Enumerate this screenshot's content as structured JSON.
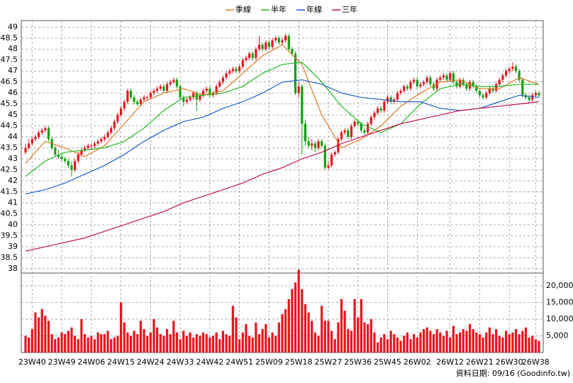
{
  "chart_data": {
    "type": "candlestick",
    "ohlc": [
      [
        43.3,
        43.7,
        43.2,
        43.5
      ],
      [
        43.5,
        43.9,
        43.4,
        43.7
      ],
      [
        43.7,
        44.0,
        43.6,
        43.9
      ],
      [
        43.9,
        44.1,
        43.8,
        44.0
      ],
      [
        44.0,
        44.3,
        43.9,
        44.2
      ],
      [
        44.2,
        44.4,
        44.1,
        44.3
      ],
      [
        44.3,
        44.5,
        44.2,
        44.4
      ],
      [
        44.4,
        44.5,
        43.8,
        43.9
      ],
      [
        43.9,
        44.0,
        43.4,
        43.5
      ],
      [
        43.5,
        43.6,
        43.1,
        43.2
      ],
      [
        43.2,
        43.4,
        43.0,
        43.1
      ],
      [
        43.1,
        43.3,
        42.9,
        43.0
      ],
      [
        43.0,
        43.1,
        42.8,
        42.9
      ],
      [
        42.9,
        43.0,
        42.6,
        42.7
      ],
      [
        42.7,
        42.9,
        42.2,
        42.5
      ],
      [
        42.5,
        43.0,
        42.4,
        42.9
      ],
      [
        42.9,
        43.3,
        42.8,
        43.2
      ],
      [
        43.2,
        43.5,
        43.1,
        43.4
      ],
      [
        43.4,
        43.6,
        43.3,
        43.5
      ],
      [
        43.5,
        43.7,
        43.4,
        43.6
      ],
      [
        43.6,
        43.7,
        43.4,
        43.6
      ],
      [
        43.6,
        43.8,
        43.5,
        43.7
      ],
      [
        43.7,
        43.9,
        43.6,
        43.8
      ],
      [
        43.8,
        44.0,
        43.7,
        43.9
      ],
      [
        43.9,
        44.1,
        43.8,
        44.0
      ],
      [
        44.0,
        44.3,
        43.9,
        44.2
      ],
      [
        44.2,
        44.5,
        44.1,
        44.4
      ],
      [
        44.4,
        44.8,
        44.3,
        44.7
      ],
      [
        44.7,
        45.1,
        44.6,
        45.0
      ],
      [
        45.0,
        45.4,
        44.9,
        45.3
      ],
      [
        45.3,
        45.7,
        45.2,
        45.6
      ],
      [
        45.6,
        46.2,
        45.5,
        46.1
      ],
      [
        46.1,
        46.2,
        45.7,
        45.8
      ],
      [
        45.8,
        45.9,
        45.5,
        45.6
      ],
      [
        45.6,
        45.7,
        45.4,
        45.5
      ],
      [
        45.5,
        45.8,
        45.4,
        45.7
      ],
      [
        45.7,
        45.9,
        45.6,
        45.8
      ],
      [
        45.8,
        45.9,
        45.7,
        45.8
      ],
      [
        45.8,
        46.1,
        45.7,
        46.0
      ],
      [
        46.0,
        46.2,
        45.9,
        46.1
      ],
      [
        46.1,
        46.3,
        46.0,
        46.2
      ],
      [
        46.2,
        46.4,
        46.1,
        46.3
      ],
      [
        46.3,
        46.4,
        46.0,
        46.1
      ],
      [
        46.1,
        46.5,
        46.0,
        46.4
      ],
      [
        46.4,
        46.6,
        46.3,
        46.5
      ],
      [
        46.5,
        46.7,
        46.4,
        46.6
      ],
      [
        46.6,
        46.7,
        46.2,
        46.3
      ],
      [
        46.3,
        46.4,
        45.7,
        45.8
      ],
      [
        45.8,
        45.9,
        45.4,
        45.6
      ],
      [
        45.6,
        45.8,
        45.5,
        45.7
      ],
      [
        45.7,
        45.9,
        45.6,
        45.8
      ],
      [
        45.8,
        46.1,
        45.7,
        46.0
      ],
      [
        46.0,
        46.1,
        45.2,
        45.7
      ],
      [
        45.7,
        46.0,
        45.6,
        45.9
      ],
      [
        45.9,
        46.2,
        45.8,
        46.1
      ],
      [
        46.1,
        46.3,
        46.0,
        46.2
      ],
      [
        46.2,
        46.3,
        45.8,
        45.9
      ],
      [
        45.9,
        46.1,
        45.8,
        46.0
      ],
      [
        46.0,
        46.4,
        45.9,
        46.3
      ],
      [
        46.3,
        46.6,
        46.2,
        46.5
      ],
      [
        46.5,
        46.8,
        46.4,
        46.7
      ],
      [
        46.7,
        47.0,
        46.6,
        46.9
      ],
      [
        46.9,
        47.1,
        46.8,
        47.0
      ],
      [
        47.0,
        47.2,
        46.9,
        47.1
      ],
      [
        47.1,
        47.2,
        46.9,
        47.0
      ],
      [
        47.0,
        47.3,
        46.9,
        47.2
      ],
      [
        47.2,
        47.6,
        47.1,
        47.5
      ],
      [
        47.5,
        47.7,
        47.4,
        47.6
      ],
      [
        47.6,
        47.9,
        47.5,
        47.8
      ],
      [
        47.8,
        47.9,
        47.5,
        47.6
      ],
      [
        47.6,
        48.1,
        47.5,
        48.0
      ],
      [
        48.0,
        48.6,
        47.9,
        48.2
      ],
      [
        48.2,
        48.3,
        47.9,
        48.0
      ],
      [
        48.0,
        48.4,
        47.9,
        48.3
      ],
      [
        48.3,
        48.4,
        48.0,
        48.1
      ],
      [
        48.1,
        48.5,
        48.0,
        48.4
      ],
      [
        48.4,
        48.6,
        48.3,
        48.5
      ],
      [
        48.5,
        48.6,
        48.2,
        48.3
      ],
      [
        48.3,
        48.5,
        48.2,
        48.4
      ],
      [
        48.4,
        48.7,
        48.3,
        48.6
      ],
      [
        48.6,
        48.7,
        47.9,
        48.0
      ],
      [
        48.0,
        48.1,
        47.7,
        47.8
      ],
      [
        47.8,
        47.9,
        45.9,
        46.0
      ],
      [
        46.0,
        46.5,
        45.8,
        46.3
      ],
      [
        46.3,
        46.4,
        43.2,
        44.6
      ],
      [
        44.6,
        44.8,
        43.6,
        43.8
      ],
      [
        43.8,
        44.0,
        43.5,
        43.6
      ],
      [
        43.6,
        43.9,
        43.4,
        43.7
      ],
      [
        43.7,
        43.8,
        43.3,
        43.5
      ],
      [
        43.5,
        43.9,
        43.4,
        43.8
      ],
      [
        43.8,
        43.9,
        43.5,
        43.6
      ],
      [
        43.6,
        43.7,
        42.5,
        42.6
      ],
      [
        42.6,
        42.9,
        42.5,
        42.7
      ],
      [
        42.7,
        43.3,
        42.6,
        43.2
      ],
      [
        43.2,
        43.4,
        43.1,
        43.3
      ],
      [
        43.3,
        44.0,
        43.2,
        43.9
      ],
      [
        43.9,
        44.3,
        43.8,
        44.2
      ],
      [
        44.2,
        44.4,
        44.1,
        44.3
      ],
      [
        44.3,
        44.4,
        43.9,
        44.0
      ],
      [
        44.0,
        44.6,
        43.9,
        44.5
      ],
      [
        44.5,
        44.8,
        44.4,
        44.7
      ],
      [
        44.7,
        44.8,
        44.5,
        44.6
      ],
      [
        44.6,
        44.7,
        44.2,
        44.3
      ],
      [
        44.3,
        44.4,
        44.1,
        44.2
      ],
      [
        44.2,
        44.7,
        44.1,
        44.6
      ],
      [
        44.6,
        45.0,
        44.5,
        44.9
      ],
      [
        44.9,
        45.2,
        44.8,
        45.1
      ],
      [
        45.1,
        45.4,
        45.0,
        45.3
      ],
      [
        45.3,
        45.4,
        45.1,
        45.2
      ],
      [
        45.2,
        45.7,
        45.1,
        45.6
      ],
      [
        45.6,
        45.9,
        45.5,
        45.8
      ],
      [
        45.8,
        45.9,
        45.5,
        45.6
      ],
      [
        45.6,
        45.8,
        45.5,
        45.7
      ],
      [
        45.7,
        46.1,
        45.6,
        46.0
      ],
      [
        46.0,
        46.2,
        45.9,
        46.1
      ],
      [
        46.1,
        46.4,
        46.0,
        46.3
      ],
      [
        46.3,
        46.4,
        46.1,
        46.2
      ],
      [
        46.2,
        46.6,
        46.1,
        46.5
      ],
      [
        46.5,
        46.7,
        46.4,
        46.6
      ],
      [
        46.6,
        46.7,
        46.2,
        46.3
      ],
      [
        46.3,
        46.5,
        46.2,
        46.4
      ],
      [
        46.4,
        46.6,
        46.3,
        46.5
      ],
      [
        46.5,
        46.8,
        46.4,
        46.7
      ],
      [
        46.7,
        46.8,
        46.3,
        46.4
      ],
      [
        46.4,
        46.5,
        46.1,
        46.2
      ],
      [
        46.2,
        46.7,
        46.1,
        46.6
      ],
      [
        46.6,
        46.8,
        46.5,
        46.7
      ],
      [
        46.7,
        46.9,
        46.6,
        46.8
      ],
      [
        46.8,
        46.9,
        46.5,
        46.6
      ],
      [
        46.6,
        47.0,
        46.5,
        46.9
      ],
      [
        46.9,
        47.0,
        46.4,
        46.5
      ],
      [
        46.5,
        46.6,
        46.2,
        46.3
      ],
      [
        46.3,
        46.7,
        46.2,
        46.6
      ],
      [
        46.6,
        46.7,
        46.3,
        46.4
      ],
      [
        46.4,
        46.5,
        46.1,
        46.2
      ],
      [
        46.2,
        46.6,
        46.1,
        46.5
      ],
      [
        46.5,
        46.6,
        46.2,
        46.3
      ],
      [
        46.3,
        46.4,
        46.0,
        46.1
      ],
      [
        46.1,
        46.2,
        45.8,
        45.9
      ],
      [
        45.9,
        46.0,
        45.7,
        45.8
      ],
      [
        45.8,
        46.1,
        45.7,
        46.0
      ],
      [
        46.0,
        46.3,
        45.9,
        46.2
      ],
      [
        46.2,
        46.3,
        46.0,
        46.1
      ],
      [
        46.1,
        46.5,
        46.0,
        46.4
      ],
      [
        46.4,
        46.7,
        46.3,
        46.6
      ],
      [
        46.6,
        46.9,
        46.5,
        46.8
      ],
      [
        46.8,
        47.1,
        46.7,
        47.0
      ],
      [
        47.0,
        47.2,
        46.9,
        47.1
      ],
      [
        47.1,
        47.4,
        47.0,
        47.2
      ],
      [
        47.2,
        47.3,
        46.9,
        47.0
      ],
      [
        47.0,
        47.1,
        46.5,
        46.6
      ],
      [
        46.6,
        46.7,
        45.8,
        45.9
      ],
      [
        45.9,
        46.0,
        45.7,
        45.8
      ],
      [
        45.8,
        45.9,
        45.6,
        45.7
      ],
      [
        45.7,
        46.0,
        45.6,
        45.9
      ],
      [
        45.9,
        46.1,
        45.8,
        46.0
      ],
      [
        46.0,
        46.1,
        45.8,
        45.9
      ]
    ],
    "up_color": "#e8141e",
    "down_color": "#10a010",
    "ma": {
      "x": [
        0,
        6,
        12,
        18,
        24,
        30,
        36,
        42,
        48,
        54,
        60,
        66,
        72,
        78,
        84,
        90,
        96,
        102,
        108,
        114,
        120,
        126,
        132,
        138,
        144,
        150,
        156
      ],
      "series": [
        {
          "name": "季線",
          "color": "#e07a28",
          "values": [
            42.8,
            43.8,
            43.5,
            43.1,
            43.6,
            44.6,
            45.6,
            46.0,
            46.2,
            45.9,
            46.1,
            46.9,
            47.7,
            48.2,
            47.3,
            45.0,
            43.5,
            43.9,
            44.5,
            45.4,
            46.0,
            46.5,
            46.6,
            46.2,
            46.2,
            46.7,
            46.4
          ]
        },
        {
          "name": "半年",
          "color": "#22bb22",
          "values": [
            42.2,
            42.9,
            43.3,
            43.4,
            43.5,
            43.8,
            44.4,
            45.2,
            45.8,
            45.9,
            46.0,
            46.3,
            46.9,
            47.3,
            47.4,
            46.5,
            45.4,
            44.6,
            44.2,
            44.6,
            45.5,
            46.2,
            46.4,
            46.3,
            46.3,
            46.4,
            46.4
          ]
        },
        {
          "name": "年線",
          "color": "#1f5fcf",
          "values": [
            41.4,
            41.6,
            41.9,
            42.3,
            42.7,
            43.2,
            43.8,
            44.3,
            44.7,
            44.9,
            45.3,
            45.6,
            46.0,
            46.5,
            46.6,
            46.4,
            46.0,
            45.8,
            45.7,
            45.6,
            45.6,
            45.3,
            45.2,
            45.3,
            45.6,
            45.9,
            45.8
          ]
        },
        {
          "name": "三年",
          "color": "#c8124e",
          "values": [
            38.8,
            39.0,
            39.2,
            39.4,
            39.7,
            40.0,
            40.3,
            40.6,
            41.0,
            41.3,
            41.6,
            41.9,
            42.3,
            42.6,
            43.0,
            43.3,
            43.7,
            44.0,
            44.3,
            44.6,
            44.8,
            45.0,
            45.2,
            45.3,
            45.4,
            45.5,
            45.6
          ]
        }
      ]
    },
    "ylim": [
      37.8,
      49.3
    ],
    "yticks": [
      38,
      38.5,
      39,
      39.5,
      40,
      40.5,
      41,
      41.5,
      42,
      42.5,
      43,
      43.5,
      44,
      44.5,
      45,
      45.5,
      46,
      46.5,
      47,
      47.5,
      48,
      48.5,
      49
    ],
    "xticks": [
      {
        "value": 2,
        "label": "23W40"
      },
      {
        "value": 11,
        "label": "23W49"
      },
      {
        "value": 20,
        "label": "24W06"
      },
      {
        "value": 29,
        "label": "24W15"
      },
      {
        "value": 38,
        "label": "24W24"
      },
      {
        "value": 47,
        "label": "24W33"
      },
      {
        "value": 56,
        "label": "24W42"
      },
      {
        "value": 65,
        "label": "24W51"
      },
      {
        "value": 74,
        "label": "25W09"
      },
      {
        "value": 83,
        "label": "25W18"
      },
      {
        "value": 92,
        "label": "25W27"
      },
      {
        "value": 101,
        "label": "25W36"
      },
      {
        "value": 110,
        "label": "25W45"
      },
      {
        "value": 119,
        "label": "26W02"
      },
      {
        "value": 129,
        "label": "26W12"
      },
      {
        "value": 138,
        "label": "26W21"
      },
      {
        "value": 147,
        "label": "26W30"
      },
      {
        "value": 155,
        "label": "26W38"
      }
    ],
    "volume": {
      "color": "#e8141e",
      "ylim": [
        0,
        23800
      ],
      "yticks": [
        {
          "value": 5000,
          "label": "5,000"
        },
        {
          "value": 10000,
          "label": "10,000"
        },
        {
          "value": 15000,
          "label": "15,000"
        },
        {
          "value": 20000,
          "label": "20,000"
        }
      ],
      "values": [
        5000,
        4500,
        7000,
        12000,
        10500,
        13000,
        11000,
        9500,
        5500,
        4000,
        4500,
        6000,
        5500,
        6500,
        7500,
        5000,
        4000,
        10000,
        5500,
        4500,
        5000,
        4000,
        6000,
        5500,
        5500,
        6500,
        4000,
        4500,
        5000,
        15000,
        9000,
        6000,
        5000,
        6500,
        5500,
        9500,
        7000,
        5000,
        6000,
        10000,
        7500,
        5500,
        5000,
        7000,
        5500,
        9500,
        6000,
        4000,
        6500,
        5000,
        6000,
        4500,
        5500,
        5000,
        6000,
        5500,
        4500,
        5000,
        6000,
        4000,
        6500,
        5500,
        5000,
        14000,
        10500,
        4000,
        6000,
        8500,
        5000,
        4500,
        9000,
        5500,
        7000,
        8500,
        4500,
        6000,
        5000,
        9000,
        11500,
        13000,
        16000,
        19000,
        21000,
        24800,
        19000,
        14500,
        12000,
        9500,
        6000,
        5000,
        14000,
        9500,
        9500,
        6500,
        4000,
        9000,
        16000,
        12500,
        7000,
        6500,
        16000,
        10500,
        16000,
        9000,
        8500,
        10000,
        6000,
        3000,
        4500,
        5500,
        4000,
        6500,
        5500,
        4500,
        3500,
        5000,
        6000,
        4000,
        5500,
        4500,
        6000,
        7000,
        7500,
        6500,
        5500,
        7000,
        6000,
        5000,
        6500,
        4500,
        8000,
        5500,
        6000,
        7000,
        6500,
        8500,
        7000,
        6000,
        5500,
        4500,
        6000,
        7500,
        5500,
        7000,
        5000,
        4500,
        6500,
        5500,
        6000,
        7000,
        5500,
        6500,
        7500,
        4500,
        5000,
        4000,
        3500
      ]
    },
    "grid": true,
    "footer": "資料日期: 09/16 (Goodinfo.tw)"
  }
}
